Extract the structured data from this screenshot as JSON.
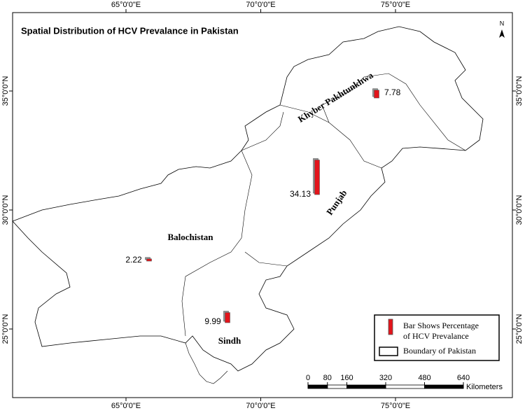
{
  "title": "Spatial Distribution of HCV Prevalance in Pakistan",
  "graticule": {
    "longitudes": [
      {
        "value": 65,
        "label": "65°0'0\"E"
      },
      {
        "value": 70,
        "label": "70°0'0\"E"
      },
      {
        "value": 75,
        "label": "75°0'0\"E"
      }
    ],
    "latitudes": [
      {
        "value": 35,
        "label": "35°0'0\"N"
      },
      {
        "value": 30,
        "label": "30°0'0\"N"
      },
      {
        "value": 25,
        "label": "25°0'0\"N"
      }
    ]
  },
  "regions": [
    {
      "name": "Khyber Pakhtunkhwa",
      "hcv_prevalence": 7.78
    },
    {
      "name": "Punjab",
      "hcv_prevalence": 34.13
    },
    {
      "name": "Balochistan",
      "hcv_prevalence": 2.22
    },
    {
      "name": "Sindh",
      "hcv_prevalence": 9.99
    }
  ],
  "bar_color": "#e3141b",
  "legend": {
    "bar_label": [
      "Bar Shows Percentage",
      "of HCV Prevalance"
    ],
    "boundary_label": "Boundary of Pakistan"
  },
  "scale_bar": {
    "ticks": [
      0,
      80,
      160,
      320,
      480,
      640
    ],
    "unit": "Kilometers"
  },
  "north_arrow": "N"
}
